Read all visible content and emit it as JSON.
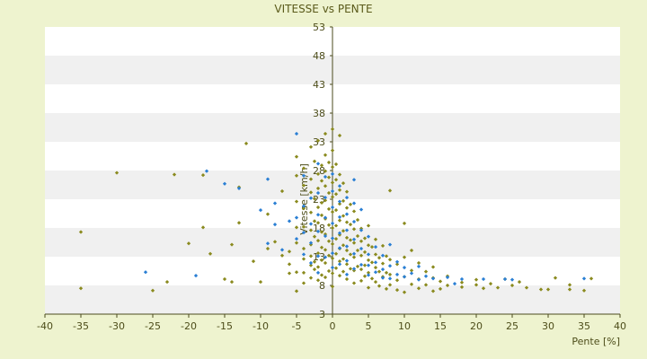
{
  "chart_data": {
    "type": "scatter",
    "title": "VITESSE vs PENTE",
    "xlabel": "Pente [%]",
    "ylabel": "Vitesse [km/h]",
    "xlim": [
      -40,
      40
    ],
    "ylim": [
      3,
      53
    ],
    "x_ticks": [
      -40,
      -35,
      -30,
      -25,
      -20,
      -15,
      -10,
      -5,
      0,
      5,
      10,
      15,
      20,
      25,
      30,
      35,
      40
    ],
    "y_ticks": [
      3,
      8,
      13,
      18,
      23,
      28,
      33,
      38,
      43,
      48,
      53
    ],
    "grid": "horizontal bands",
    "legend": "none",
    "colors": {
      "background": "#eef3cf",
      "plot_band_light": "#ffffff",
      "plot_band_dark": "#f0f0f0",
      "axis": "#4b4b1e",
      "series_olive": "#8a8a1e",
      "series_blue": "#2a7fd4"
    },
    "series": [
      {
        "color": "#8a8a1e",
        "points": [
          [
            -35,
            17.3
          ],
          [
            -35,
            7.5
          ],
          [
            -30,
            27.6
          ],
          [
            -25,
            7.1
          ],
          [
            -23,
            8.6
          ],
          [
            -22,
            27.3
          ],
          [
            -20,
            15.3
          ],
          [
            -18,
            27.2
          ],
          [
            -18,
            18.1
          ],
          [
            -17,
            13.5
          ],
          [
            -15,
            9.1
          ],
          [
            -14,
            15.1
          ],
          [
            -14,
            8.6
          ],
          [
            -13,
            25.1
          ],
          [
            -13,
            18.9
          ],
          [
            -12,
            32.7
          ],
          [
            -11,
            12.2
          ],
          [
            -10,
            8.6
          ],
          [
            -9,
            14.4
          ],
          [
            -9,
            20.4
          ],
          [
            -8,
            15.6
          ],
          [
            -7,
            24.4
          ],
          [
            -7,
            13.2
          ],
          [
            -6,
            13.9
          ],
          [
            -6,
            11.7
          ],
          [
            -6,
            10.1
          ],
          [
            -5,
            30.4
          ],
          [
            -5,
            27.1
          ],
          [
            -5,
            22.6
          ],
          [
            -5,
            18.1
          ],
          [
            -5,
            15.4
          ],
          [
            -5,
            10.3
          ],
          [
            -5,
            7.0
          ],
          [
            -4,
            28.4
          ],
          [
            -4,
            25.4
          ],
          [
            -4,
            21.4
          ],
          [
            -4,
            18.2
          ],
          [
            -4,
            14.4
          ],
          [
            -4,
            12.6
          ],
          [
            -4,
            10.2
          ],
          [
            -4,
            8.4
          ],
          [
            -3,
            32.1
          ],
          [
            -3,
            26.5
          ],
          [
            -3,
            24.2
          ],
          [
            -3,
            20.7
          ],
          [
            -3,
            17.6
          ],
          [
            -3,
            15.1
          ],
          [
            -3,
            13.1
          ],
          [
            -3,
            11.5
          ],
          [
            -3,
            9.3
          ],
          [
            -2.5,
            29.6
          ],
          [
            -2.5,
            23.1
          ],
          [
            -2.5,
            19.2
          ],
          [
            -2.5,
            16.5
          ],
          [
            -2.5,
            12.1
          ],
          [
            -2.5,
            10.8
          ],
          [
            -2,
            33.2
          ],
          [
            -2,
            27.4
          ],
          [
            -2,
            24.9
          ],
          [
            -2,
            21.6
          ],
          [
            -2,
            18.9
          ],
          [
            -2,
            15.8
          ],
          [
            -2,
            13.6
          ],
          [
            -2,
            11.2
          ],
          [
            -2,
            8.9
          ],
          [
            -1.5,
            28.9
          ],
          [
            -1.5,
            26.2
          ],
          [
            -1.5,
            22.4
          ],
          [
            -1.5,
            20.2
          ],
          [
            -1.5,
            17.3
          ],
          [
            -1.5,
            14.6
          ],
          [
            -1.5,
            12.4
          ],
          [
            -1.5,
            9.8
          ],
          [
            -1,
            34.4
          ],
          [
            -1,
            30.7
          ],
          [
            -1,
            27.9
          ],
          [
            -1,
            25.3
          ],
          [
            -1,
            22.8
          ],
          [
            -1,
            19.6
          ],
          [
            -1,
            16.9
          ],
          [
            -1,
            14.2
          ],
          [
            -1,
            11.9
          ],
          [
            -1,
            9.4
          ],
          [
            -0.5,
            29.4
          ],
          [
            -0.5,
            26.8
          ],
          [
            -0.5,
            24.1
          ],
          [
            -0.5,
            21.3
          ],
          [
            -0.5,
            18.5
          ],
          [
            -0.5,
            15.7
          ],
          [
            -0.5,
            13.2
          ],
          [
            -0.5,
            10.5
          ],
          [
            0,
            35.2
          ],
          [
            0,
            31.5
          ],
          [
            0,
            28.6
          ],
          [
            0,
            25.9
          ],
          [
            0,
            23.4
          ],
          [
            0,
            20.8
          ],
          [
            0,
            18.0
          ],
          [
            0,
            15.2
          ],
          [
            0,
            12.7
          ],
          [
            0,
            10.1
          ],
          [
            0,
            7.8
          ],
          [
            0.5,
            29.1
          ],
          [
            0.5,
            26.4
          ],
          [
            0.5,
            23.9
          ],
          [
            0.5,
            21.1
          ],
          [
            0.5,
            18.4
          ],
          [
            0.5,
            16.1
          ],
          [
            0.5,
            13.5
          ],
          [
            0.5,
            11.0
          ],
          [
            1,
            34.1
          ],
          [
            1,
            27.3
          ],
          [
            1,
            24.6
          ],
          [
            1,
            22.2
          ],
          [
            1,
            19.3
          ],
          [
            1,
            16.8
          ],
          [
            1,
            14.4
          ],
          [
            1,
            12.2
          ],
          [
            1,
            9.7
          ],
          [
            1.5,
            25.8
          ],
          [
            1.5,
            22.7
          ],
          [
            1.5,
            20.1
          ],
          [
            1.5,
            17.5
          ],
          [
            1.5,
            15.0
          ],
          [
            1.5,
            12.6
          ],
          [
            1.5,
            10.4
          ],
          [
            2,
            24.3
          ],
          [
            2,
            21.5
          ],
          [
            2,
            19.0
          ],
          [
            2,
            16.3
          ],
          [
            2,
            14.1
          ],
          [
            2,
            11.7
          ],
          [
            2,
            9.1
          ],
          [
            2.5,
            22.1
          ],
          [
            2.5,
            18.6
          ],
          [
            2.5,
            15.9
          ],
          [
            2.5,
            13.4
          ],
          [
            2.5,
            10.9
          ],
          [
            3,
            20.9
          ],
          [
            3,
            17.8
          ],
          [
            3,
            15.4
          ],
          [
            3,
            12.9
          ],
          [
            3,
            10.6
          ],
          [
            3,
            8.4
          ],
          [
            3.5,
            19.4
          ],
          [
            3.5,
            16.6
          ],
          [
            3.5,
            14.1
          ],
          [
            3.5,
            11.3
          ],
          [
            4,
            17.9
          ],
          [
            4,
            15.7
          ],
          [
            4,
            13.2
          ],
          [
            4,
            10.8
          ],
          [
            4,
            8.8
          ],
          [
            4.5,
            16.2
          ],
          [
            4.5,
            13.8
          ],
          [
            4.5,
            11.5
          ],
          [
            4.5,
            9.6
          ],
          [
            5,
            18.4
          ],
          [
            5,
            15.0
          ],
          [
            5,
            12.4
          ],
          [
            5,
            10.2
          ],
          [
            5,
            7.6
          ],
          [
            5.5,
            14.7
          ],
          [
            5.5,
            12.0
          ],
          [
            5.5,
            9.2
          ],
          [
            6,
            16.0
          ],
          [
            6,
            13.4
          ],
          [
            6,
            11.1
          ],
          [
            6,
            8.6
          ],
          [
            6.5,
            12.8
          ],
          [
            6.5,
            10.4
          ],
          [
            6.5,
            7.9
          ],
          [
            7,
            14.9
          ],
          [
            7,
            11.8
          ],
          [
            7,
            9.5
          ],
          [
            7.5,
            13.1
          ],
          [
            7.5,
            10.2
          ],
          [
            7.5,
            7.4
          ],
          [
            8,
            24.5
          ],
          [
            8,
            12.5
          ],
          [
            8,
            9.9
          ],
          [
            8,
            8.1
          ],
          [
            9,
            11.7
          ],
          [
            9,
            8.9
          ],
          [
            9,
            7.2
          ],
          [
            10,
            18.8
          ],
          [
            10,
            12.9
          ],
          [
            10,
            9.5
          ],
          [
            10,
            6.8
          ],
          [
            11,
            14.1
          ],
          [
            11,
            10.6
          ],
          [
            11,
            8.2
          ],
          [
            12,
            11.9
          ],
          [
            12,
            9.1
          ],
          [
            12,
            7.5
          ],
          [
            13,
            10.4
          ],
          [
            13,
            8.1
          ],
          [
            14,
            11.2
          ],
          [
            14,
            9.3
          ],
          [
            14,
            7.0
          ],
          [
            15,
            8.7
          ],
          [
            15,
            7.4
          ],
          [
            16,
            9.6
          ],
          [
            16,
            8.0
          ],
          [
            18,
            8.5
          ],
          [
            18,
            7.7
          ],
          [
            20,
            9.0
          ],
          [
            20,
            8.1
          ],
          [
            21,
            7.5
          ],
          [
            22,
            8.3
          ],
          [
            23,
            7.6
          ],
          [
            24,
            9.1
          ],
          [
            25,
            8.0
          ],
          [
            26,
            8.6
          ],
          [
            27,
            7.6
          ],
          [
            29,
            7.3
          ],
          [
            30,
            7.3
          ],
          [
            31,
            9.3
          ],
          [
            33,
            7.3
          ],
          [
            33,
            8.1
          ],
          [
            35,
            7.1
          ],
          [
            36,
            9.2
          ]
        ]
      },
      {
        "color": "#2a7fd4",
        "points": [
          [
            -26,
            10.3
          ],
          [
            -19,
            9.7
          ],
          [
            -17.5,
            27.9
          ],
          [
            -15,
            25.7
          ],
          [
            -13,
            24.9
          ],
          [
            -10,
            21.1
          ],
          [
            -9,
            26.5
          ],
          [
            -9,
            15.3
          ],
          [
            -8,
            18.6
          ],
          [
            -8,
            22.3
          ],
          [
            -7,
            14.2
          ],
          [
            -6,
            19.2
          ],
          [
            -5,
            34.4
          ],
          [
            -5,
            19.8
          ],
          [
            -5,
            16.1
          ],
          [
            -4,
            27.1
          ],
          [
            -4,
            21.8
          ],
          [
            -4,
            17.2
          ],
          [
            -4,
            13.4
          ],
          [
            -3,
            23.2
          ],
          [
            -3,
            18.7
          ],
          [
            -3,
            15.4
          ],
          [
            -3,
            11.9
          ],
          [
            -2,
            29.2
          ],
          [
            -2,
            24.1
          ],
          [
            -2,
            20.3
          ],
          [
            -2,
            17.4
          ],
          [
            -2,
            13.1
          ],
          [
            -2,
            10.2
          ],
          [
            -1,
            26.9
          ],
          [
            -1,
            23.3
          ],
          [
            -1,
            19.8
          ],
          [
            -1,
            16.6
          ],
          [
            -1,
            12.9
          ],
          [
            0,
            27.4
          ],
          [
            0,
            24.4
          ],
          [
            0,
            21.6
          ],
          [
            0,
            18.8
          ],
          [
            0,
            16.2
          ],
          [
            0,
            13.6
          ],
          [
            0,
            11.1
          ],
          [
            1,
            25.3
          ],
          [
            1,
            22.6
          ],
          [
            1,
            19.9
          ],
          [
            1,
            17.1
          ],
          [
            1,
            14.5
          ],
          [
            1,
            11.7
          ],
          [
            2,
            23.3
          ],
          [
            2,
            20.4
          ],
          [
            2,
            17.6
          ],
          [
            2,
            14.8
          ],
          [
            2,
            12.3
          ],
          [
            2,
            9.9
          ],
          [
            3,
            26.4
          ],
          [
            3,
            22.3
          ],
          [
            3,
            19.1
          ],
          [
            3,
            16.0
          ],
          [
            3,
            13.5
          ],
          [
            3,
            10.9
          ],
          [
            4,
            21.2
          ],
          [
            4,
            17.6
          ],
          [
            4,
            14.4
          ],
          [
            4,
            11.6
          ],
          [
            5,
            16.5
          ],
          [
            5,
            13.4
          ],
          [
            5,
            11.5
          ],
          [
            5,
            9.8
          ],
          [
            6,
            14.7
          ],
          [
            6,
            12.0
          ],
          [
            6,
            10.3
          ],
          [
            7,
            13.2
          ],
          [
            7,
            10.8
          ],
          [
            7,
            9.3
          ],
          [
            8,
            15.1
          ],
          [
            8,
            11.4
          ],
          [
            8,
            9.2
          ],
          [
            9,
            12.1
          ],
          [
            9,
            9.9
          ],
          [
            10,
            11.1
          ],
          [
            10,
            9.5
          ],
          [
            11,
            10.1
          ],
          [
            12,
            11.3
          ],
          [
            12,
            9.0
          ],
          [
            13,
            9.6
          ],
          [
            14,
            9.2
          ],
          [
            16,
            9.4
          ],
          [
            17,
            8.3
          ],
          [
            18,
            9.1
          ],
          [
            21,
            9.1
          ],
          [
            24,
            9.1
          ],
          [
            25,
            9.0
          ],
          [
            35,
            9.2
          ]
        ]
      }
    ]
  }
}
